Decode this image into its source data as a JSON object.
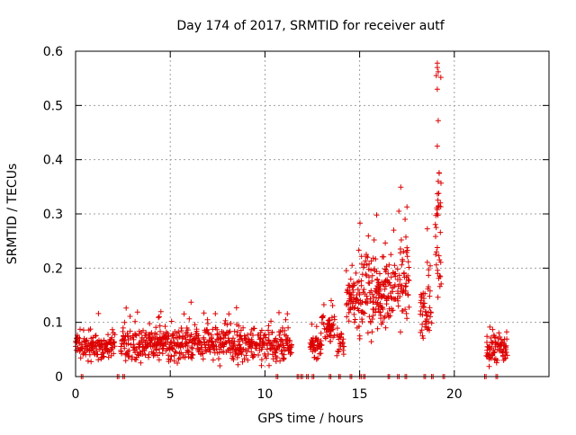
{
  "chart_data": {
    "type": "scatter",
    "title": "Day 174 of 2017, SRMTID for receiver autf",
    "xlabel": "GPS time / hours",
    "ylabel": "SRMTID / TECUs",
    "xlim": [
      0,
      25
    ],
    "ylim": [
      0,
      0.6
    ],
    "x_ticks": [
      0,
      5,
      10,
      15,
      20
    ],
    "x_tick_labels": [
      "0",
      "5",
      "10",
      "15",
      "20"
    ],
    "y_ticks": [
      0,
      0.1,
      0.2,
      0.3,
      0.4,
      0.5,
      0.6
    ],
    "y_tick_labels": [
      "0",
      "0.1",
      "0.2",
      "0.3",
      "0.4",
      "0.5",
      "0.6"
    ],
    "grid": true,
    "legend": "none",
    "marker": "+",
    "color": "#dd0000",
    "series": [
      {
        "name": "SRMTID",
        "segments": [
          {
            "x_start": 0.0,
            "x_end": 2.1,
            "base": 0.055,
            "spread": 0.025,
            "step": 0.03
          },
          {
            "x_start": 2.4,
            "x_end": 9.3,
            "base": 0.06,
            "spread": 0.028,
            "step": 0.03
          },
          {
            "x_start": 9.3,
            "x_end": 11.4,
            "base": 0.058,
            "spread": 0.028,
            "step": 0.03
          },
          {
            "x_start": 12.4,
            "x_end": 13.0,
            "base": 0.055,
            "spread": 0.02,
            "step": 0.03
          },
          {
            "x_start": 13.0,
            "x_end": 13.7,
            "base": 0.085,
            "spread": 0.03,
            "step": 0.025
          },
          {
            "x_start": 13.8,
            "x_end": 14.2,
            "base": 0.06,
            "spread": 0.02,
            "step": 0.025
          },
          {
            "x_start": 14.3,
            "x_end": 15.0,
            "base": 0.14,
            "spread": 0.04,
            "step": 0.025
          },
          {
            "x_start": 15.0,
            "x_end": 16.0,
            "base": 0.15,
            "spread": 0.07,
            "step": 0.02
          },
          {
            "x_start": 16.0,
            "x_end": 16.9,
            "base": 0.16,
            "spread": 0.06,
            "step": 0.02
          },
          {
            "x_start": 17.0,
            "x_end": 17.6,
            "base": 0.17,
            "spread": 0.07,
            "step": 0.025
          },
          {
            "x_start": 18.2,
            "x_end": 18.8,
            "base": 0.12,
            "spread": 0.06,
            "step": 0.025
          },
          {
            "x_start": 19.0,
            "x_end": 19.3,
            "base": 0.25,
            "spread": 0.12,
            "step": 0.02
          },
          {
            "x_start": 21.7,
            "x_end": 22.8,
            "base": 0.05,
            "spread": 0.025,
            "step": 0.025
          }
        ],
        "outliers": [
          {
            "x": 19.1,
            "y": 0.578
          },
          {
            "x": 19.1,
            "y": 0.57
          },
          {
            "x": 19.15,
            "y": 0.562
          },
          {
            "x": 19.05,
            "y": 0.555
          },
          {
            "x": 19.1,
            "y": 0.53
          },
          {
            "x": 19.15,
            "y": 0.472
          },
          {
            "x": 19.1,
            "y": 0.425
          },
          {
            "x": 19.2,
            "y": 0.375
          },
          {
            "x": 19.15,
            "y": 0.36
          },
          {
            "x": 17.5,
            "y": 0.313
          },
          {
            "x": 15.9,
            "y": 0.298
          },
          {
            "x": 17.4,
            "y": 0.29
          },
          {
            "x": 16.8,
            "y": 0.27
          },
          {
            "x": 14.6,
            "y": 0.205
          },
          {
            "x": 13.5,
            "y": 0.14
          },
          {
            "x": 6.1,
            "y": 0.137
          },
          {
            "x": 8.5,
            "y": 0.127
          }
        ],
        "zero_values_x": [
          0.3,
          2.2,
          2.5,
          10.6,
          11.7,
          11.9,
          12.2,
          12.5,
          13.4,
          13.9,
          14.5,
          15.0,
          15.2,
          16.5,
          17.0,
          17.4,
          18.4,
          18.8,
          19.4,
          21.6,
          22.2
        ]
      }
    ]
  }
}
